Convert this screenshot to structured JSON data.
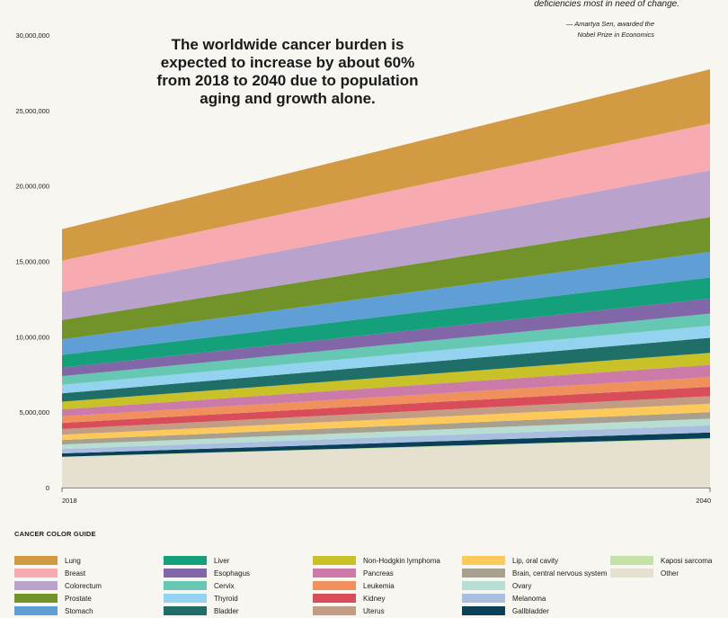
{
  "quote": {
    "line": "deficiencies most in need of change.",
    "attribution_1": "— Amartya Sen, awarded the",
    "attribution_2": "Nobel Prize in Economics"
  },
  "headline": "The worldwide cancer burden is expected to increase by about 60% from 2018 to 2040 due to population aging and growth alone.",
  "legend_title": "CANCER COLOR GUIDE",
  "chart_data": {
    "type": "area",
    "stacked": true,
    "x": [
      "2018",
      "2040"
    ],
    "ylim": [
      0,
      30000000
    ],
    "yticks": [
      0,
      5000000,
      10000000,
      15000000,
      20000000,
      25000000,
      30000000
    ],
    "ytick_labels": [
      "0",
      "5,000,000",
      "10,000,000",
      "15,000,000",
      "20,000,000",
      "25,000,000",
      "30,000,000"
    ],
    "grid": false,
    "legend_position": "bottom",
    "series": [
      {
        "name": "Other",
        "color": "#e5e0d0",
        "values": [
          2000000,
          3200000
        ]
      },
      {
        "name": "Kaposi sarcoma",
        "color": "#c5e3a8",
        "values": [
          45000,
          70000
        ]
      },
      {
        "name": "Gallbladder",
        "color": "#0b4158",
        "values": [
          220000,
          380000
        ]
      },
      {
        "name": "Melanoma",
        "color": "#a9bfdf",
        "values": [
          290000,
          470000
        ]
      },
      {
        "name": "Ovary",
        "color": "#b8ddd2",
        "values": [
          300000,
          450000
        ]
      },
      {
        "name": "Brain, central nervous system",
        "color": "#a8a08e",
        "values": [
          300000,
          430000
        ]
      },
      {
        "name": "Lip, oral cavity",
        "color": "#fdc95a",
        "values": [
          350000,
          560000
        ]
      },
      {
        "name": "Uterus",
        "color": "#c39c84",
        "values": [
          380000,
          500000
        ]
      },
      {
        "name": "Kidney",
        "color": "#d94c5a",
        "values": [
          400000,
          620000
        ]
      },
      {
        "name": "Leukemia",
        "color": "#f0905c",
        "values": [
          440000,
          650000
        ]
      },
      {
        "name": "Pancreas",
        "color": "#cc7ba9",
        "values": [
          460000,
          800000
        ]
      },
      {
        "name": "Non-Hodgkin lymphoma",
        "color": "#c8c128",
        "values": [
          510000,
          800000
        ]
      },
      {
        "name": "Bladder",
        "color": "#1f6e67",
        "values": [
          550000,
          1000000
        ]
      },
      {
        "name": "Thyroid",
        "color": "#93d3ef",
        "values": [
          570000,
          800000
        ]
      },
      {
        "name": "Cervix",
        "color": "#66c7b2",
        "values": [
          570000,
          800000
        ]
      },
      {
        "name": "Esophagus",
        "color": "#8166a8",
        "values": [
          570000,
          1000000
        ]
      },
      {
        "name": "Liver",
        "color": "#14a07a",
        "values": [
          840000,
          1400000
        ]
      },
      {
        "name": "Stomach",
        "color": "#609fd6",
        "values": [
          1030000,
          1700000
        ]
      },
      {
        "name": "Prostate",
        "color": "#72932a",
        "values": [
          1280000,
          2300000
        ]
      },
      {
        "name": "Colorectum",
        "color": "#b9a2cc",
        "values": [
          1850000,
          3100000
        ]
      },
      {
        "name": "Breast",
        "color": "#f7abb0",
        "values": [
          2090000,
          3100000
        ]
      },
      {
        "name": "Lung",
        "color": "#d39a44",
        "values": [
          2090000,
          3600000
        ]
      }
    ]
  },
  "legend": [
    {
      "label": "Lung",
      "color": "#d39a44"
    },
    {
      "label": "Breast",
      "color": "#f7abb0"
    },
    {
      "label": "Colorectum",
      "color": "#b9a2cc"
    },
    {
      "label": "Prostate",
      "color": "#72932a"
    },
    {
      "label": "Stomach",
      "color": "#609fd6"
    },
    {
      "label": "Liver",
      "color": "#14a07a"
    },
    {
      "label": "Esophagus",
      "color": "#8166a8"
    },
    {
      "label": "Cervix",
      "color": "#66c7b2"
    },
    {
      "label": "Thyroid",
      "color": "#93d3ef"
    },
    {
      "label": "Bladder",
      "color": "#1f6e67"
    },
    {
      "label": "Non-Hodgkin lymphoma",
      "color": "#c8c128"
    },
    {
      "label": "Pancreas",
      "color": "#cc7ba9"
    },
    {
      "label": "Leukemia",
      "color": "#f0905c"
    },
    {
      "label": "Kidney",
      "color": "#d94c5a"
    },
    {
      "label": "Uterus",
      "color": "#c39c84"
    },
    {
      "label": "Lip, oral cavity",
      "color": "#fdc95a"
    },
    {
      "label": "Brain, central nervous system",
      "color": "#a8a08e"
    },
    {
      "label": "Ovary",
      "color": "#b8ddd2"
    },
    {
      "label": "Melanoma",
      "color": "#a9bfdf"
    },
    {
      "label": "Gallbladder",
      "color": "#0b4158"
    },
    {
      "label": "Kaposi sarcoma",
      "color": "#c5e3a8"
    },
    {
      "label": "Other",
      "color": "#e5e0d0"
    }
  ]
}
